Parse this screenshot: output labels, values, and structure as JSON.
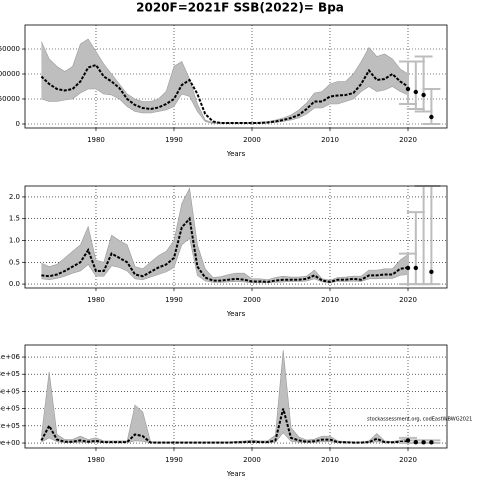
{
  "title": "2020F=2021F SSB(2022)= Bpa",
  "chart_data": [
    {
      "type": "band_line",
      "xlabel": "Years",
      "x": [
        1973,
        1974,
        1975,
        1976,
        1977,
        1978,
        1979,
        1980,
        1981,
        1982,
        1983,
        1984,
        1985,
        1986,
        1987,
        1988,
        1989,
        1990,
        1991,
        1992,
        1993,
        1994,
        1995,
        1996,
        1997,
        1998,
        1999,
        2000,
        2001,
        2002,
        2003,
        2004,
        2005,
        2006,
        2007,
        2008,
        2009,
        2010,
        2011,
        2012,
        2013,
        2014,
        2015,
        2016,
        2017,
        2018,
        2019,
        2020
      ],
      "values": [
        95000,
        80000,
        70000,
        67000,
        70000,
        85000,
        113000,
        118000,
        95000,
        85000,
        72000,
        50000,
        38000,
        32000,
        30000,
        33000,
        40000,
        50000,
        78000,
        88000,
        60000,
        20000,
        5000,
        2000,
        2000,
        2000,
        2000,
        2000,
        2000,
        3000,
        5000,
        8000,
        12000,
        18000,
        30000,
        45000,
        45000,
        55000,
        57000,
        58000,
        62000,
        80000,
        107000,
        88000,
        90000,
        100000,
        85000,
        75000
      ],
      "upper": [
        165000,
        130000,
        115000,
        105000,
        115000,
        160000,
        170000,
        145000,
        120000,
        100000,
        80000,
        60000,
        50000,
        45000,
        45000,
        50000,
        65000,
        115000,
        125000,
        90000,
        40000,
        8000,
        3000,
        3000,
        3000,
        3000,
        3000,
        3000,
        4000,
        5000,
        8000,
        12000,
        18000,
        28000,
        42000,
        62000,
        65000,
        80000,
        85000,
        85000,
        100000,
        125000,
        153000,
        135000,
        140000,
        130000,
        110000,
        100000
      ],
      "lower": [
        50000,
        45000,
        45000,
        48000,
        50000,
        62000,
        70000,
        70000,
        60000,
        58000,
        50000,
        35000,
        25000,
        22000,
        22000,
        25000,
        28000,
        35000,
        60000,
        55000,
        25000,
        5000,
        1000,
        1000,
        1000,
        1000,
        1000,
        1000,
        1000,
        2000,
        3000,
        5000,
        8000,
        12000,
        20000,
        32000,
        32000,
        40000,
        40000,
        45000,
        50000,
        65000,
        75000,
        65000,
        68000,
        75000,
        65000,
        58000
      ],
      "band_color": "#bebebe",
      "line_color": "#000000",
      "forecast": {
        "x": [
          2020,
          2021,
          2022,
          2023
        ],
        "values": [
          70000,
          64000,
          58000,
          14000
        ],
        "lower": [
          40000,
          30000,
          25000,
          0
        ],
        "upper": [
          125000,
          125000,
          135000,
          70000
        ],
        "color": "#bdbdbd"
      },
      "xlim": [
        1970.9,
        2025
      ],
      "xticks": [
        1980,
        1990,
        2000,
        2010,
        2020
      ],
      "ylim": [
        -8000,
        198000
      ],
      "yticks": [
        0,
        50000,
        100000,
        150000
      ],
      "grid": true
    },
    {
      "type": "band_line",
      "xlabel": "Years",
      "x": [
        1973,
        1974,
        1975,
        1976,
        1977,
        1978,
        1979,
        1980,
        1981,
        1982,
        1983,
        1984,
        1985,
        1986,
        1987,
        1988,
        1989,
        1990,
        1991,
        1992,
        1993,
        1994,
        1995,
        1996,
        1997,
        1998,
        1999,
        2000,
        2001,
        2002,
        2003,
        2004,
        2005,
        2006,
        2007,
        2008,
        2009,
        2010,
        2011,
        2012,
        2013,
        2014,
        2015,
        2016,
        2017,
        2018,
        2019,
        2020
      ],
      "values": [
        0.2,
        0.18,
        0.22,
        0.3,
        0.4,
        0.5,
        0.78,
        0.3,
        0.3,
        0.7,
        0.6,
        0.5,
        0.22,
        0.18,
        0.28,
        0.38,
        0.45,
        0.6,
        1.3,
        1.5,
        0.4,
        0.15,
        0.08,
        0.08,
        0.1,
        0.12,
        0.1,
        0.06,
        0.06,
        0.05,
        0.08,
        0.1,
        0.1,
        0.1,
        0.12,
        0.2,
        0.08,
        0.05,
        0.1,
        0.1,
        0.12,
        0.1,
        0.2,
        0.2,
        0.22,
        0.22,
        0.35,
        0.38
      ],
      "upper": [
        0.48,
        0.4,
        0.45,
        0.6,
        0.75,
        0.9,
        1.32,
        0.55,
        0.5,
        1.12,
        1.0,
        0.9,
        0.4,
        0.35,
        0.5,
        0.65,
        0.75,
        1.0,
        1.85,
        2.2,
        0.9,
        0.35,
        0.15,
        0.17,
        0.22,
        0.25,
        0.25,
        0.12,
        0.12,
        0.1,
        0.15,
        0.18,
        0.16,
        0.16,
        0.18,
        0.32,
        0.12,
        0.09,
        0.15,
        0.16,
        0.18,
        0.18,
        0.32,
        0.32,
        0.35,
        0.35,
        0.55,
        0.68
      ],
      "lower": [
        0.12,
        0.1,
        0.13,
        0.18,
        0.25,
        0.3,
        0.45,
        0.18,
        0.18,
        0.42,
        0.38,
        0.3,
        0.12,
        0.1,
        0.16,
        0.22,
        0.28,
        0.38,
        0.9,
        1.05,
        0.2,
        0.07,
        0.04,
        0.04,
        0.05,
        0.06,
        0.05,
        0.03,
        0.03,
        0.03,
        0.04,
        0.05,
        0.06,
        0.06,
        0.07,
        0.12,
        0.05,
        0.03,
        0.06,
        0.06,
        0.07,
        0.06,
        0.12,
        0.12,
        0.13,
        0.13,
        0.2,
        0.22
      ],
      "band_color": "#bebebe",
      "line_color": "#000000",
      "forecast": {
        "x": [
          2020,
          2021,
          2022,
          2023
        ],
        "values": [
          0.37,
          0.37,
          null,
          0.28
        ],
        "lower": [
          0,
          0,
          0,
          0
        ],
        "upper": [
          0.7,
          1.65,
          2.25,
          2.25
        ],
        "color": "#bdbdbd"
      },
      "xlim": [
        1970.9,
        2025
      ],
      "xticks": [
        1980,
        1990,
        2000,
        2010,
        2020
      ],
      "ylim": [
        -0.09,
        2.25
      ],
      "yticks": [
        {
          "value": 0,
          "label": "0.0"
        },
        {
          "value": 0.5,
          "label": "0.5"
        },
        {
          "value": 1,
          "label": "1.0"
        },
        {
          "value": 1.5,
          "label": "1.5"
        },
        {
          "value": 2,
          "label": "2.0"
        }
      ],
      "grid": true
    },
    {
      "type": "band_line",
      "xlabel": "Years",
      "annotation": "stockassessment.org, codEastWBWG2021",
      "x": [
        1973,
        1974,
        1975,
        1976,
        1977,
        1978,
        1979,
        1980,
        1981,
        1982,
        1983,
        1984,
        1985,
        1986,
        1987,
        1988,
        1989,
        1990,
        1991,
        1992,
        1993,
        1994,
        1995,
        1996,
        1997,
        1998,
        1999,
        2000,
        2001,
        2002,
        2003,
        2004,
        2005,
        2006,
        2007,
        2008,
        2009,
        2010,
        2011,
        2012,
        2013,
        2014,
        2015,
        2016,
        2017,
        2018,
        2019,
        2020
      ],
      "values": [
        30000,
        200000,
        40000,
        15000,
        15000,
        30000,
        15000,
        25000,
        10000,
        10000,
        10000,
        10000,
        100000,
        80000,
        5000,
        5000,
        5000,
        5000,
        5000,
        5000,
        5000,
        5000,
        5000,
        5000,
        5000,
        8000,
        10000,
        15000,
        10000,
        10000,
        30000,
        400000,
        60000,
        30000,
        15000,
        20000,
        40000,
        40000,
        10000,
        8000,
        5000,
        5000,
        10000,
        50000,
        10000,
        8000,
        15000,
        20000
      ],
      "upper": [
        80000,
        830000,
        100000,
        40000,
        40000,
        80000,
        40000,
        60000,
        25000,
        25000,
        25000,
        25000,
        440000,
        360000,
        15000,
        12000,
        12000,
        12000,
        12000,
        12000,
        12000,
        12000,
        12000,
        12000,
        12000,
        18000,
        25000,
        35000,
        25000,
        25000,
        90000,
        1080000,
        180000,
        70000,
        35000,
        45000,
        80000,
        80000,
        25000,
        18000,
        12000,
        12000,
        25000,
        110000,
        25000,
        18000,
        35000,
        50000
      ],
      "lower": [
        10000,
        60000,
        15000,
        5000,
        5000,
        10000,
        5000,
        8000,
        3000,
        3000,
        3000,
        3000,
        25000,
        20000,
        2000,
        2000,
        2000,
        2000,
        2000,
        2000,
        2000,
        2000,
        2000,
        2000,
        2000,
        3000,
        4000,
        5000,
        4000,
        4000,
        10000,
        120000,
        20000,
        10000,
        5000,
        7000,
        15000,
        15000,
        4000,
        3000,
        2000,
        2000,
        4000,
        15000,
        4000,
        3000,
        5000,
        7000
      ],
      "band_color": "#bebebe",
      "line_color": "#000000",
      "forecast": {
        "x": [
          2020,
          2021,
          2022,
          2023
        ],
        "values": [
          30000,
          10000,
          8000,
          8000
        ],
        "lower": [
          0,
          0,
          0,
          0
        ],
        "upper": [
          60000,
          30000,
          30000,
          30000
        ],
        "color": "#bdbdbd"
      },
      "xlim": [
        1970.9,
        2025
      ],
      "xticks": [
        1980,
        1990,
        2000,
        2010,
        2020
      ],
      "ylim": [
        -58000,
        1140000
      ],
      "yticks": [
        {
          "value": 0,
          "label": "0e+00"
        },
        {
          "value": 200000,
          "label": "2e+05"
        },
        {
          "value": 400000,
          "label": "4e+05"
        },
        {
          "value": 600000,
          "label": "6e+05"
        },
        {
          "value": 800000,
          "label": "8e+05"
        },
        {
          "value": 1000000,
          "label": "1e+06"
        }
      ],
      "grid": true
    }
  ]
}
